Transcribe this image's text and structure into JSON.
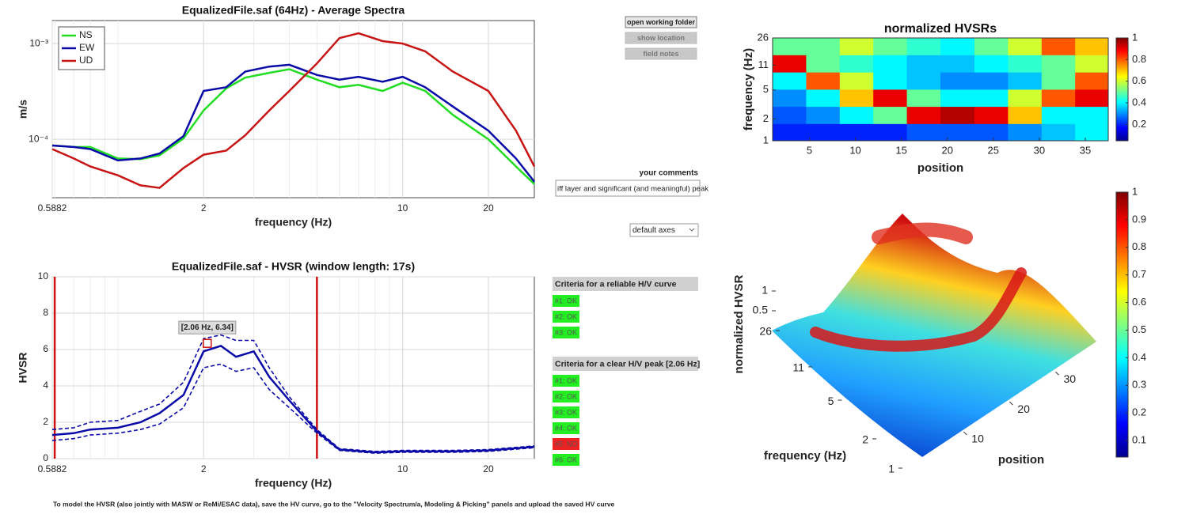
{
  "chart_data": [
    {
      "type": "line",
      "title": "EqualizedFile.saf (64Hz) - Average Spectra",
      "xlabel": "frequency (Hz)",
      "ylabel": "m/s",
      "xscale": "log",
      "yscale": "log",
      "grid": true,
      "legend": "upper left",
      "xlim": [
        0.5882,
        29
      ],
      "ylim": [
        2.45e-05,
        0.00174
      ],
      "xticks": [
        0.5882,
        2,
        10,
        20
      ],
      "yticks": [
        {
          "value": 0.0001,
          "label": "10⁻⁴"
        },
        {
          "value": 0.001,
          "label": "10⁻³"
        }
      ],
      "x": [
        0.5882,
        0.7,
        0.8,
        1,
        1.2,
        1.4,
        1.7,
        2,
        2.4,
        2.8,
        3.4,
        4,
        5,
        6,
        7,
        8.5,
        10,
        12,
        15,
        20,
        25,
        29
      ],
      "series": [
        {
          "name": "NS",
          "color": "#22dd22",
          "values": [
            8.6e-05,
            8.3e-05,
            8.3e-05,
            6.3e-05,
            6.2e-05,
            6.8e-05,
            0.000102,
            0.0002,
            0.00034,
            0.00044,
            0.000495,
            0.00054,
            0.00042,
            0.00035,
            0.00037,
            0.00032,
            0.00039,
            0.00032,
            0.00018,
            0.0001,
            5.2e-05,
            3.4e-05
          ]
        },
        {
          "name": "EW",
          "color": "#0a0aa8",
          "values": [
            8.6e-05,
            8.3e-05,
            7.9e-05,
            6e-05,
            6.3e-05,
            7.1e-05,
            0.000108,
            0.00032,
            0.00035,
            0.00051,
            0.000575,
            0.0006,
            0.00047,
            0.00042,
            0.00045,
            0.0004,
            0.00045,
            0.00035,
            0.00022,
            0.000123,
            6.3e-05,
            3.6e-05
          ]
        },
        {
          "name": "UD",
          "color": "#c81414",
          "values": [
            7.9e-05,
            6.3e-05,
            5.2e-05,
            4.2e-05,
            3.3e-05,
            3.1e-05,
            5e-05,
            6.9e-05,
            7.6e-05,
            0.00011,
            0.0002,
            0.00032,
            0.00062,
            0.00114,
            0.00128,
            0.00106,
            0.001,
            0.00083,
            0.00051,
            0.00032,
            0.000123,
            5.2e-05
          ]
        }
      ]
    },
    {
      "type": "line",
      "title": "EqualizedFile.saf - HVSR (window length: 17s)",
      "xlabel": "frequency (Hz)",
      "ylabel": "HVSR",
      "xscale": "log",
      "grid": true,
      "xlim": [
        0.5882,
        29
      ],
      "ylim": [
        0,
        10
      ],
      "xticks": [
        0.5882,
        2,
        10,
        20
      ],
      "yticks": [
        0,
        2,
        4,
        6,
        8,
        10
      ],
      "x": [
        0.5882,
        0.7,
        0.8,
        1,
        1.2,
        1.4,
        1.7,
        2,
        2.3,
        2.6,
        3,
        3.4,
        4,
        5,
        6,
        8,
        10,
        15,
        20,
        29
      ],
      "series": [
        {
          "color": "#0a0aa8",
          "dash": false,
          "values": [
            1.3,
            1.4,
            1.6,
            1.7,
            2.0,
            2.5,
            3.5,
            5.9,
            6.2,
            5.6,
            5.9,
            4.5,
            3.2,
            1.5,
            0.5,
            0.35,
            0.4,
            0.4,
            0.45,
            0.65
          ]
        },
        {
          "color": "#0a0aa8",
          "dash": true,
          "values": [
            1.6,
            1.7,
            2.0,
            2.1,
            2.6,
            3.0,
            4.2,
            6.6,
            6.8,
            6.5,
            6.5,
            5.0,
            3.4,
            1.6,
            0.55,
            0.4,
            0.45,
            0.45,
            0.5,
            0.7
          ]
        },
        {
          "color": "#0a0aa8",
          "dash": true,
          "values": [
            1.0,
            1.1,
            1.3,
            1.4,
            1.6,
            1.9,
            2.8,
            5.0,
            5.2,
            4.8,
            5.0,
            3.8,
            2.8,
            1.4,
            0.45,
            0.3,
            0.35,
            0.35,
            0.4,
            0.6
          ]
        }
      ],
      "vlines": [
        0.6,
        5.0
      ],
      "vline_color": "#d01010",
      "annotation": {
        "x": 2.06,
        "y": 6.34,
        "label": "[2.06 Hz, 6.34]"
      }
    },
    {
      "type": "heatmap",
      "title": "normalized HVSRs",
      "xlabel": "position",
      "ylabel": "frequency (Hz)",
      "xlim": [
        1,
        37.5
      ],
      "ylim": [
        1,
        26
      ],
      "yscale": "log",
      "xticks": [
        5,
        10,
        15,
        20,
        25,
        30,
        35
      ],
      "yticks": [
        1,
        2,
        5,
        11,
        26
      ],
      "x": [
        2.8,
        6.5,
        10.1,
        13.8,
        17.4,
        21.1,
        24.8,
        28.4,
        32.1,
        35.7
      ],
      "y": [
        1.31,
        2.26,
        3.9,
        6.7,
        11.6,
        20
      ],
      "values": [
        [
          0.2,
          0.2,
          0.2,
          0.2,
          0.25,
          0.25,
          0.25,
          0.3,
          0.35,
          0.4
        ],
        [
          0.25,
          0.3,
          0.4,
          0.5,
          0.9,
          0.95,
          0.9,
          0.7,
          0.4,
          0.4
        ],
        [
          0.3,
          0.4,
          0.7,
          0.9,
          0.5,
          0.4,
          0.4,
          0.6,
          0.8,
          0.9
        ],
        [
          0.4,
          0.8,
          0.6,
          0.4,
          0.35,
          0.3,
          0.3,
          0.35,
          0.5,
          0.8
        ],
        [
          0.9,
          0.5,
          0.45,
          0.4,
          0.35,
          0.35,
          0.4,
          0.45,
          0.5,
          0.6
        ],
        [
          0.5,
          0.5,
          0.6,
          0.5,
          0.45,
          0.4,
          0.5,
          0.6,
          0.8,
          0.7
        ]
      ],
      "clim": [
        0.05,
        1
      ],
      "colorbar_ticks": [
        0.2,
        0.4,
        0.6,
        0.8,
        1
      ]
    },
    {
      "type": "surface",
      "xlabel": "position",
      "ylabel": "frequency (Hz)",
      "zlabel": "normalized HVSR",
      "xlim": [
        1,
        38
      ],
      "ylim": [
        1,
        26
      ],
      "zlim": [
        0,
        1
      ],
      "xticks": [
        10,
        20,
        30
      ],
      "yticks": [
        1,
        2,
        5,
        11,
        26
      ],
      "zticks": [
        0.5,
        1
      ],
      "clim": [
        0.04,
        1
      ],
      "colorbar_ticks": [
        0.1,
        0.2,
        0.3,
        0.4,
        0.5,
        0.6,
        0.7,
        0.8,
        0.9,
        1
      ]
    }
  ],
  "buttons": [
    "open working folder",
    "show location",
    "field notes"
  ],
  "comments": {
    "label": "your comments",
    "text": "iff layer and significant (and meaningful) peak"
  },
  "axes_menu": "default axes",
  "criteria": [
    {
      "title": "Criteria for a reliable H/V curve",
      "items": [
        {
          "label": "#1: OK",
          "color": "#22ee22"
        },
        {
          "label": "#2: OK",
          "color": "#22ee22"
        },
        {
          "label": "#3: OK",
          "color": "#22ee22"
        }
      ]
    },
    {
      "title": "Criteria for a clear H/V peak [2.06 Hz]",
      "items": [
        {
          "label": "#1: OK",
          "color": "#22ee22"
        },
        {
          "label": "#2: OK",
          "color": "#22ee22"
        },
        {
          "label": "#3: OK",
          "color": "#22ee22"
        },
        {
          "label": "#4: OK",
          "color": "#22ee22"
        },
        {
          "label": "#5: NO",
          "color": "#ee2222"
        },
        {
          "label": "#6: OK",
          "color": "#22ee22"
        }
      ]
    }
  ],
  "footer": "To model the HVSR (also jointly with MASW or ReMi/ESAC data), save the HV curve, go to the \"Velocity Spectrum/a, Modeling & Picking\" panels and upload the saved HV curve"
}
